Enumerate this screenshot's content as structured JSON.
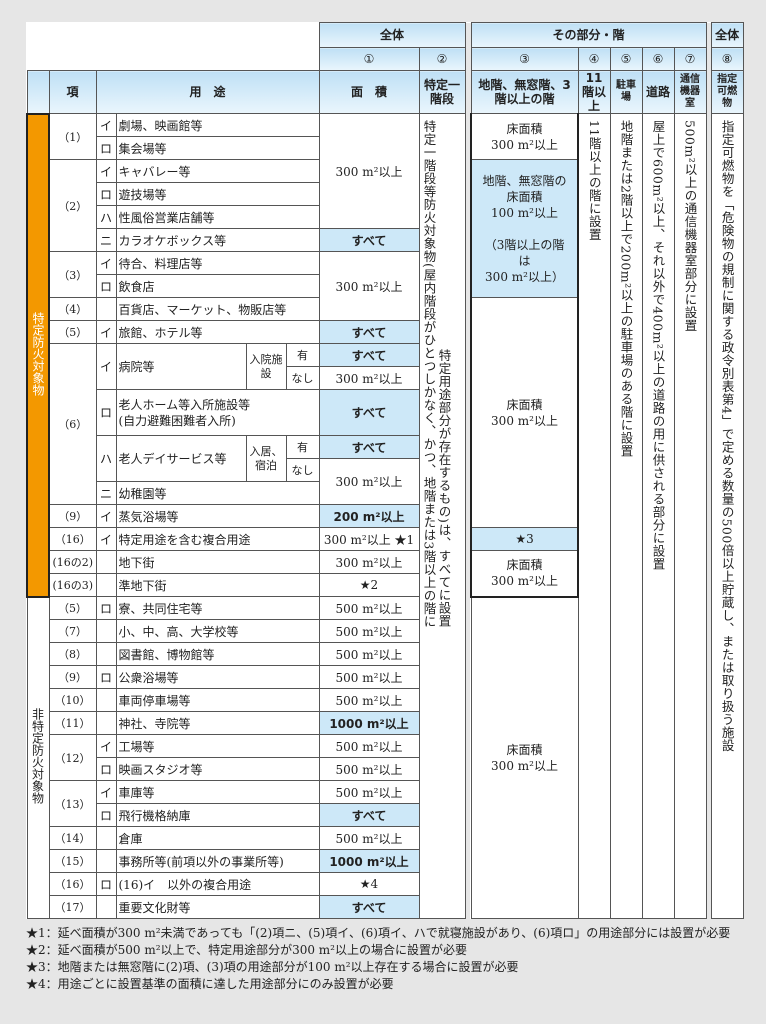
{
  "header": {
    "overall": "全体",
    "part": "その部分・階",
    "overall2": "全体",
    "nums": [
      "①",
      "②",
      "③",
      "④",
      "⑤",
      "⑥",
      "⑦",
      "⑧"
    ],
    "kou": "項",
    "youto": "用　途",
    "menseki": "面　積",
    "c2": "特定一階段",
    "c3": "地階、無窓階、3階以上の階",
    "c4": "11階以上",
    "c5": "駐車場",
    "c6": "道路",
    "c7": "通信機器室",
    "c8": "指定可燃物"
  },
  "groups": {
    "tokutei": "特定防火対象物",
    "hitokutei": "非特定防火対象物"
  },
  "rows": [
    {
      "kou": "（1）",
      "sub": "イ",
      "use": "劇場、映画館等",
      "area": "300 m²以上"
    },
    {
      "sub": "ロ",
      "use": "集会場等"
    },
    {
      "kou": "（2）",
      "sub": "イ",
      "use": "キャバレー等"
    },
    {
      "sub": "ロ",
      "use": "遊技場等"
    },
    {
      "sub": "ハ",
      "use": "性風俗営業店舗等"
    },
    {
      "sub": "ニ",
      "use": "カラオケボックス等",
      "area": "すべて"
    },
    {
      "kou": "（3）",
      "sub": "イ",
      "use": "待合、料理店等",
      "area": "300 m²以上"
    },
    {
      "sub": "ロ",
      "use": "飲食店"
    },
    {
      "kou": "（4）",
      "use": "百貨店、マーケット、物販店等"
    },
    {
      "kou": "（5）",
      "sub": "イ",
      "use": "旅館、ホテル等",
      "area": "すべて"
    },
    {
      "kou": "（6）",
      "sub": "イ",
      "use": "病院等",
      "cond": "入院施設",
      "opt": "有",
      "area": "すべて"
    },
    {
      "opt": "なし",
      "area": "300 m²以上"
    },
    {
      "sub": "ロ",
      "use": "老人ホーム等入所施設等",
      "use2": "(自力避難困難者入所)",
      "area": "すべて"
    },
    {
      "sub": "ハ",
      "use": "老人デイサービス等",
      "cond": "入居、宿泊",
      "opt": "有",
      "area": "すべて"
    },
    {
      "opt": "なし",
      "area": "300 m²以上"
    },
    {
      "sub": "ニ",
      "use": "幼稚園等"
    },
    {
      "kou": "（9）",
      "sub": "イ",
      "use": "蒸気浴場等",
      "area": "200 m²以上"
    },
    {
      "kou": "（16）",
      "sub": "イ",
      "use": "特定用途を含む複合用途",
      "area": "300 m²以上 ★1"
    },
    {
      "kou": "(16の2)",
      "use": "地下街",
      "area": "300 m²以上"
    },
    {
      "kou": "(16の3)",
      "use": "準地下街",
      "area": "★2"
    },
    {
      "kou": "（5）",
      "sub": "ロ",
      "use": "寮、共同住宅等",
      "area": "500 m²以上"
    },
    {
      "kou": "（7）",
      "use": "小、中、高、大学校等",
      "area": "500 m²以上"
    },
    {
      "kou": "（8）",
      "use": "図書館、博物館等",
      "area": "500 m²以上"
    },
    {
      "kou": "（9）",
      "sub": "ロ",
      "use": "公衆浴場等",
      "area": "500 m²以上"
    },
    {
      "kou": "（10）",
      "use": "車両停車場等",
      "area": "500 m²以上"
    },
    {
      "kou": "（11）",
      "use": "神社、寺院等",
      "area": "1000 m²以上"
    },
    {
      "kou": "（12）",
      "sub": "イ",
      "use": "工場等",
      "area": "500 m²以上"
    },
    {
      "sub": "ロ",
      "use": "映画スタジオ等",
      "area": "500 m²以上"
    },
    {
      "kou": "（13）",
      "sub": "イ",
      "use": "車庫等",
      "area": "500 m²以上"
    },
    {
      "sub": "ロ",
      "use": "飛行機格納庫",
      "area": "すべて"
    },
    {
      "kou": "（14）",
      "use": "倉庫",
      "area": "500 m²以上"
    },
    {
      "kou": "（15）",
      "use": "事務所等(前項以外の事業所等)",
      "area": "1000 m²以上"
    },
    {
      "kou": "（16）",
      "sub": "ロ",
      "use": "(16)イ　以外の複合用途",
      "area": "★4"
    },
    {
      "kou": "（17）",
      "use": "重要文化財等",
      "area": "すべて"
    }
  ],
  "col2": [
    "特定一階段等防火対象物(屋内階段がひとつしかなく、かつ、地階または3階以上の階に",
    "特定用途部分が存在するもの)は、すべてに設置"
  ],
  "col3": [
    "床面積\n300 m²以上",
    "地階、無窓階の\n床面積\n100 m²以上\n\n（3階以上の階\nは\n300 m²以上）",
    "床面積\n300 m²以上",
    "★3",
    "床面積\n300 m²以上",
    "床面積\n300 m²以上"
  ],
  "col4": "11階以上の階に設置",
  "col5": "地階または2階以上で200m²以上の駐車場のある階に設置",
  "col6": "屋上で600m²以上、それ以外で400m²以上の道路の用に供される部分に設置",
  "col7": "500m²以上の通信機器室部分に設置",
  "col8": "指定可燃物を「危険物の規制に関する政令別表第4」で定める数量の500倍以上貯蔵し、または取り扱う施設",
  "notes": [
    "★1：延べ面積が300 m²未満であっても「(2)項ニ、(5)項イ、(6)項イ、ハで就寝施設があり、(6)項ロ」の用途部分には設置が必要",
    "★2：延べ面積が500 m²以上で、特定用途部分が300 m²以上の場合に設置が必要",
    "★3：地階または無窓階に(2)項、(3)項の用途部分が100 m²以上存在する場合に設置が必要",
    "★4：用途ごとに設置基準の面積に達した用途部分にのみ設置が必要"
  ],
  "colors": {
    "accent_orange": "#f39800",
    "highlight_blue": "#cde8f8",
    "header_blue": "#bfe0f5"
  }
}
